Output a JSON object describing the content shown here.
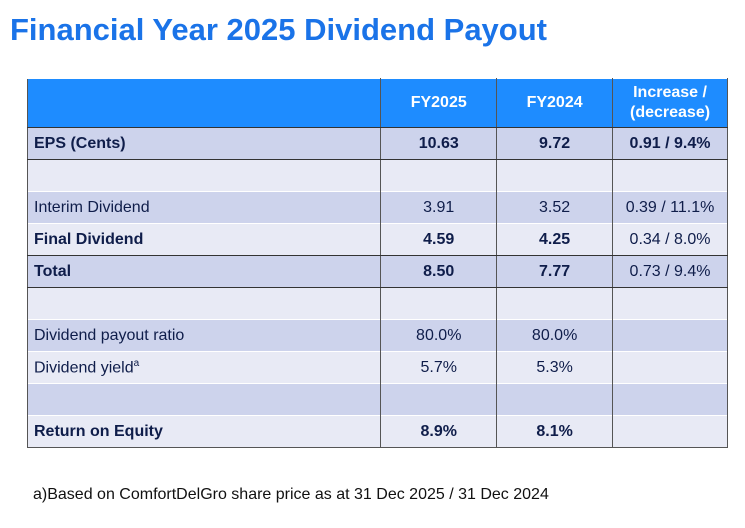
{
  "title": "Financial Year 2025 Dividend Payout",
  "table": {
    "header": [
      "FY2025",
      "FY2024",
      "Increase / (decrease)"
    ],
    "rows": [
      [
        "EPS (Cents)",
        "10.63",
        "9.72",
        "0.91 / 9.4%"
      ],
      [
        "Interim Dividend",
        "3.91",
        "3.52",
        "0.39 / 11.1%"
      ],
      [
        "Final Dividend",
        "4.59",
        "4.25",
        "0.34 / 8.0%"
      ],
      [
        "Total",
        "8.50",
        "7.77",
        "0.73 / 9.4%"
      ],
      [
        "Dividend payout ratio",
        "80.0%",
        "80.0%"
      ],
      [
        "Dividend yield",
        "5.7%",
        "5.3%"
      ],
      [
        "Return on Equity",
        "8.9%",
        "8.1%"
      ]
    ],
    "dividend_yield_superscript": "a"
  },
  "footnote": "a)Based on ComfortDelGro share price as at 31 Dec 2025 / 31 Dec 2024"
}
